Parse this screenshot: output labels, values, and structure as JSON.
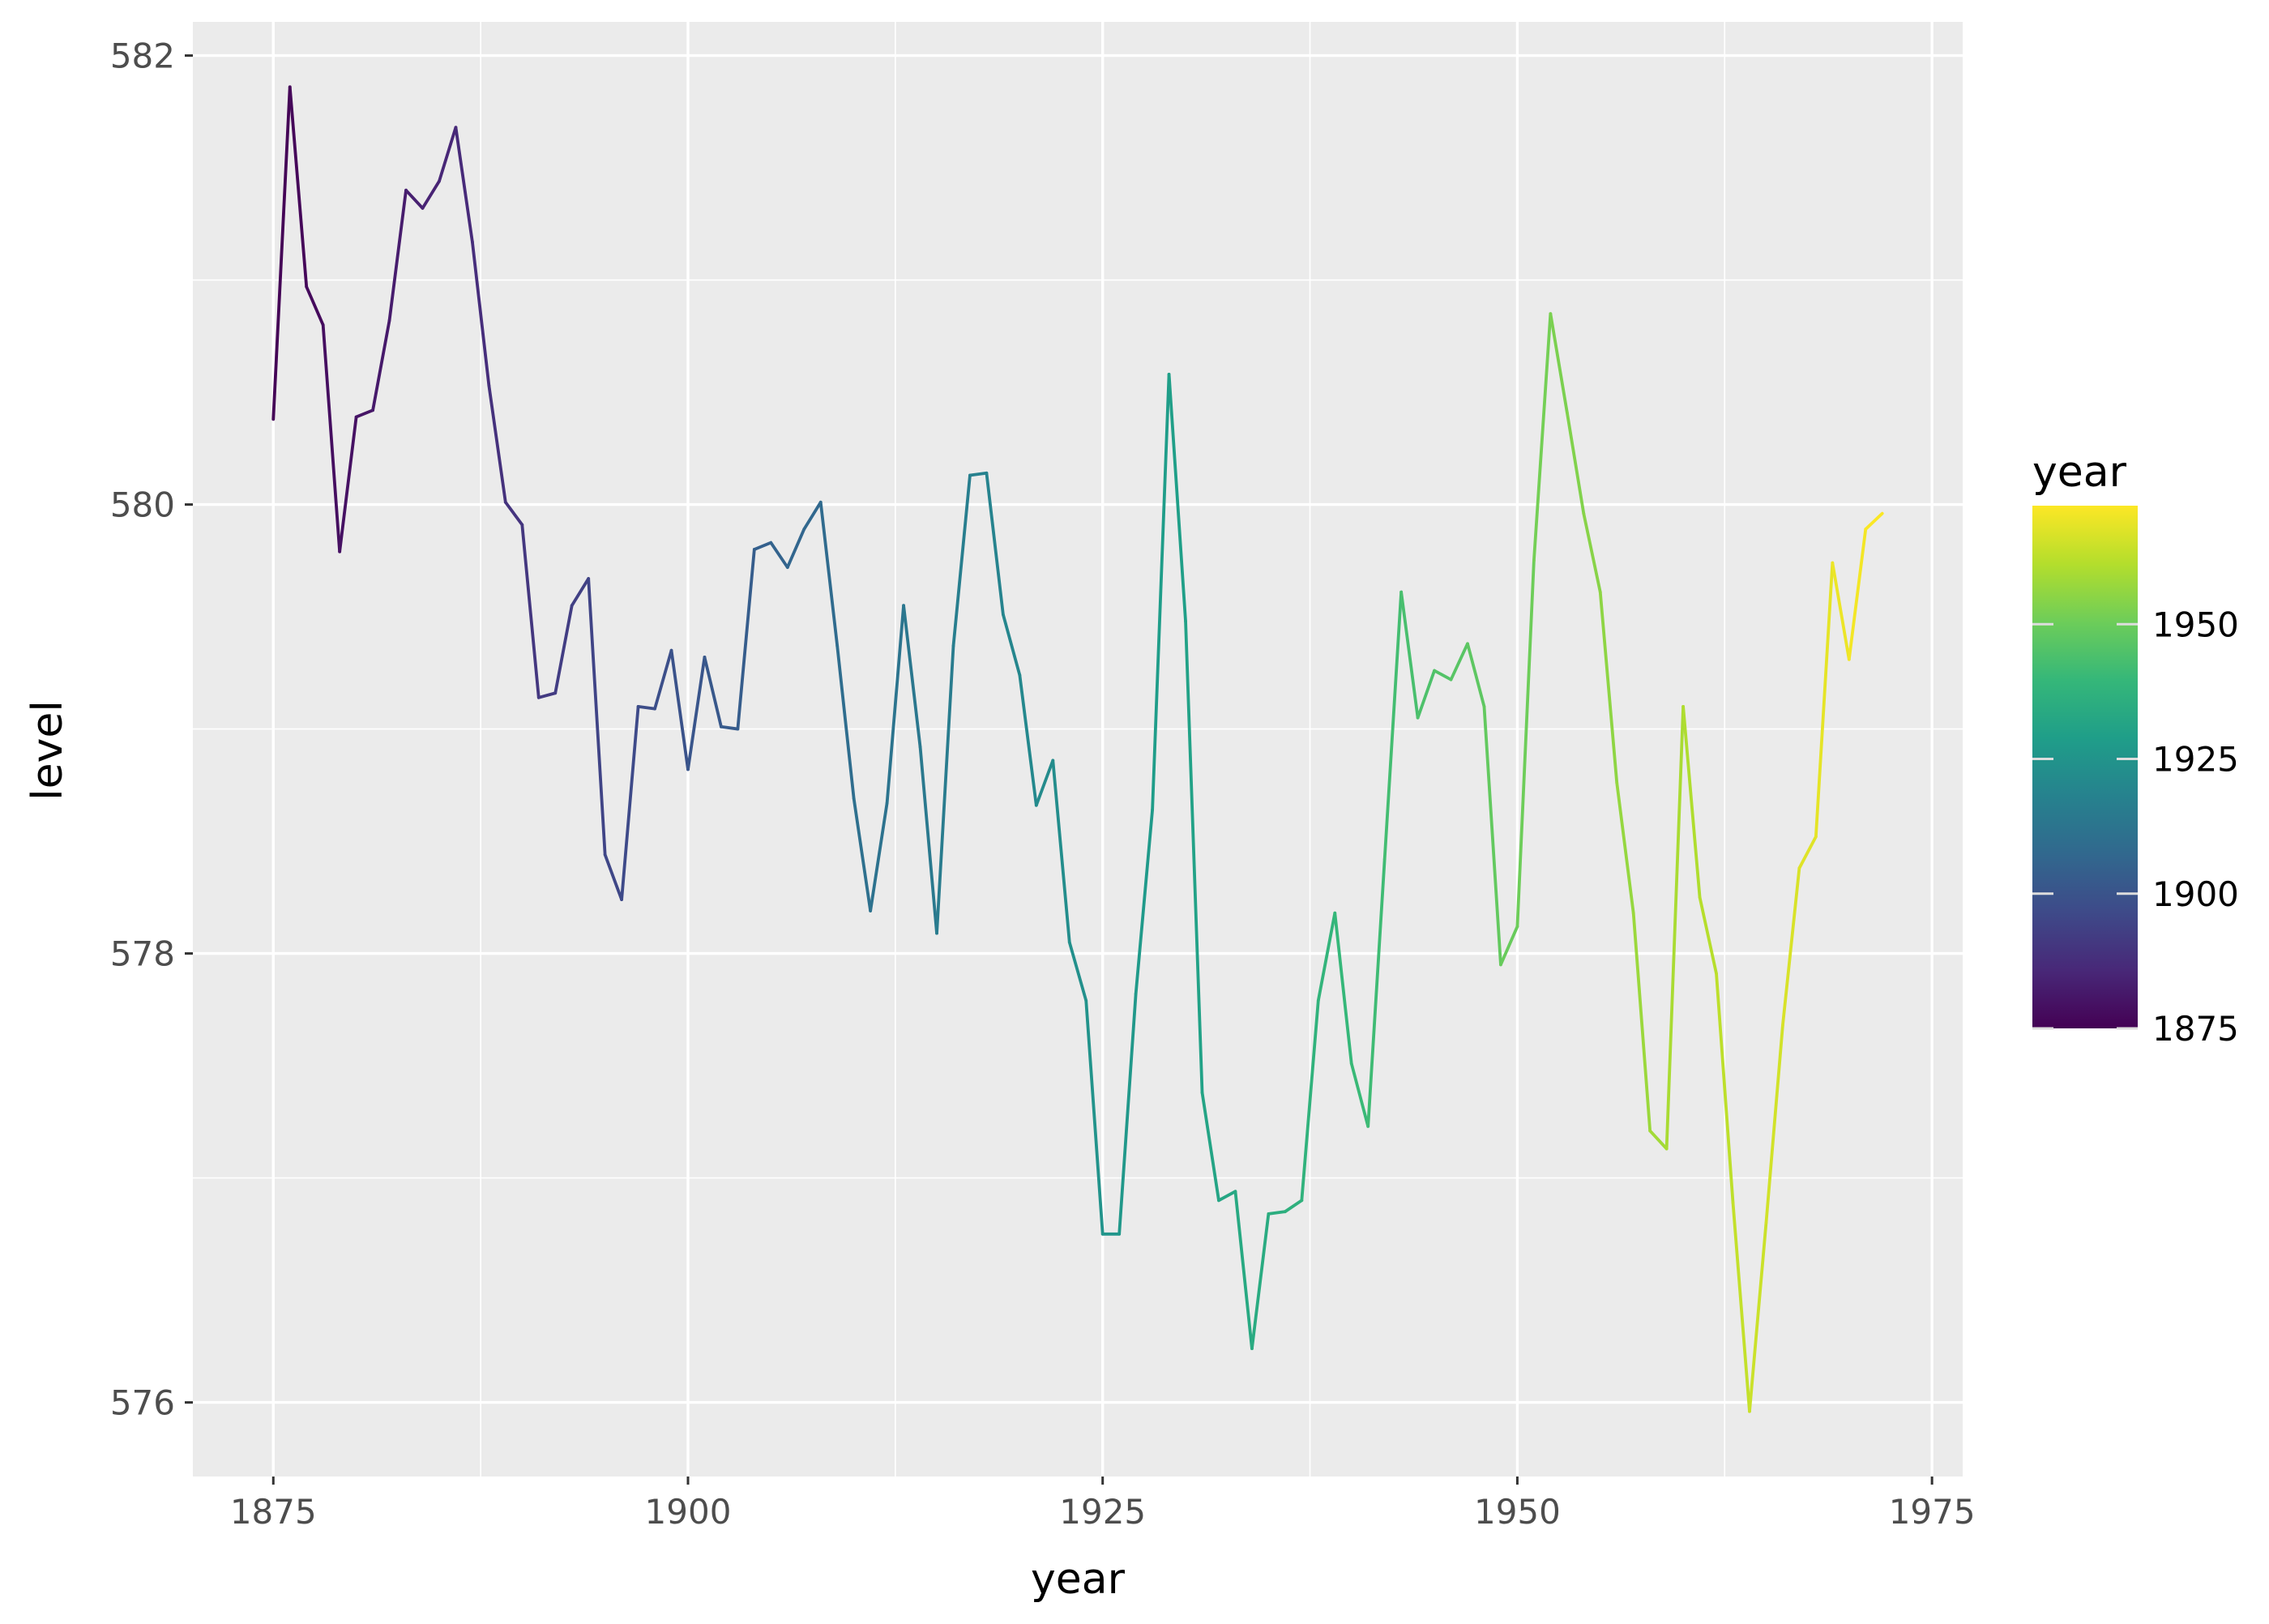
{
  "chart_data": {
    "type": "line",
    "title": "",
    "xlabel": "year",
    "ylabel": "level",
    "xlim": [
      1870.15,
      1976.85
    ],
    "ylim": [
      575.67,
      582.15
    ],
    "x_ticks": [
      1875,
      1900,
      1925,
      1950,
      1975
    ],
    "x_tick_labels": [
      "1875",
      "1900",
      "1925",
      "1950",
      "1975"
    ],
    "y_ticks": [
      576,
      578,
      580,
      582
    ],
    "y_tick_labels": [
      "576",
      "578",
      "580",
      "582"
    ],
    "grid": true,
    "legend": {
      "title": "year",
      "placement": "right",
      "type": "colorbar",
      "range": [
        1875,
        1972
      ],
      "ticks": [
        1875,
        1900,
        1925,
        1950
      ],
      "tick_labels": [
        "1875",
        "1900",
        "1925",
        "1950"
      ],
      "colormap": "viridis"
    },
    "colors": {
      "panel_background": "#EBEBEB",
      "grid_major": "#FFFFFF",
      "tick_text": "#4D4D4D",
      "viridis_stops": [
        "#440154",
        "#482878",
        "#3E4A89",
        "#31688E",
        "#26828E",
        "#1F9E89",
        "#35B779",
        "#6DCD59",
        "#B4DE2C",
        "#FDE725"
      ]
    },
    "x": [
      1875,
      1876,
      1877,
      1878,
      1879,
      1880,
      1881,
      1882,
      1883,
      1884,
      1885,
      1886,
      1887,
      1888,
      1889,
      1890,
      1891,
      1892,
      1893,
      1894,
      1895,
      1896,
      1897,
      1898,
      1899,
      1900,
      1901,
      1902,
      1903,
      1904,
      1905,
      1906,
      1907,
      1908,
      1909,
      1910,
      1911,
      1912,
      1913,
      1914,
      1915,
      1916,
      1917,
      1918,
      1919,
      1920,
      1921,
      1922,
      1923,
      1924,
      1925,
      1926,
      1927,
      1928,
      1929,
      1930,
      1931,
      1932,
      1933,
      1934,
      1935,
      1936,
      1937,
      1938,
      1939,
      1940,
      1941,
      1942,
      1943,
      1944,
      1945,
      1946,
      1947,
      1948,
      1949,
      1950,
      1951,
      1952,
      1953,
      1954,
      1955,
      1956,
      1957,
      1958,
      1959,
      1960,
      1961,
      1962,
      1963,
      1964,
      1965,
      1966,
      1967,
      1968,
      1969,
      1970,
      1971,
      1972
    ],
    "series": [
      {
        "values": [
          580.38,
          581.86,
          580.97,
          580.8,
          579.79,
          580.39,
          580.42,
          580.82,
          581.4,
          581.32,
          581.44,
          581.68,
          581.17,
          580.53,
          580.01,
          579.91,
          579.14,
          579.16,
          579.55,
          579.67,
          578.44,
          578.24,
          579.1,
          579.09,
          579.35,
          578.82,
          579.32,
          579.01,
          579.0,
          579.8,
          579.83,
          579.72,
          579.89,
          580.01,
          579.37,
          578.69,
          578.19,
          578.67,
          579.55,
          578.92,
          578.09,
          579.37,
          580.13,
          580.14,
          579.51,
          579.24,
          578.66,
          578.86,
          578.05,
          577.79,
          576.75,
          576.75,
          577.82,
          578.64,
          580.58,
          579.48,
          577.38,
          576.9,
          576.94,
          576.24,
          576.84,
          576.85,
          576.9,
          577.79,
          578.18,
          577.51,
          577.23,
          578.42,
          579.61,
          579.05,
          579.26,
          579.22,
          579.38,
          579.1,
          577.95,
          578.12,
          579.75,
          580.85,
          580.41,
          579.96,
          579.61,
          578.76,
          578.18,
          577.21,
          577.13,
          579.1,
          578.25,
          577.91,
          576.89,
          575.96,
          576.8,
          577.68,
          578.38,
          578.52,
          579.74,
          579.31,
          579.89,
          579.96
        ]
      }
    ]
  }
}
